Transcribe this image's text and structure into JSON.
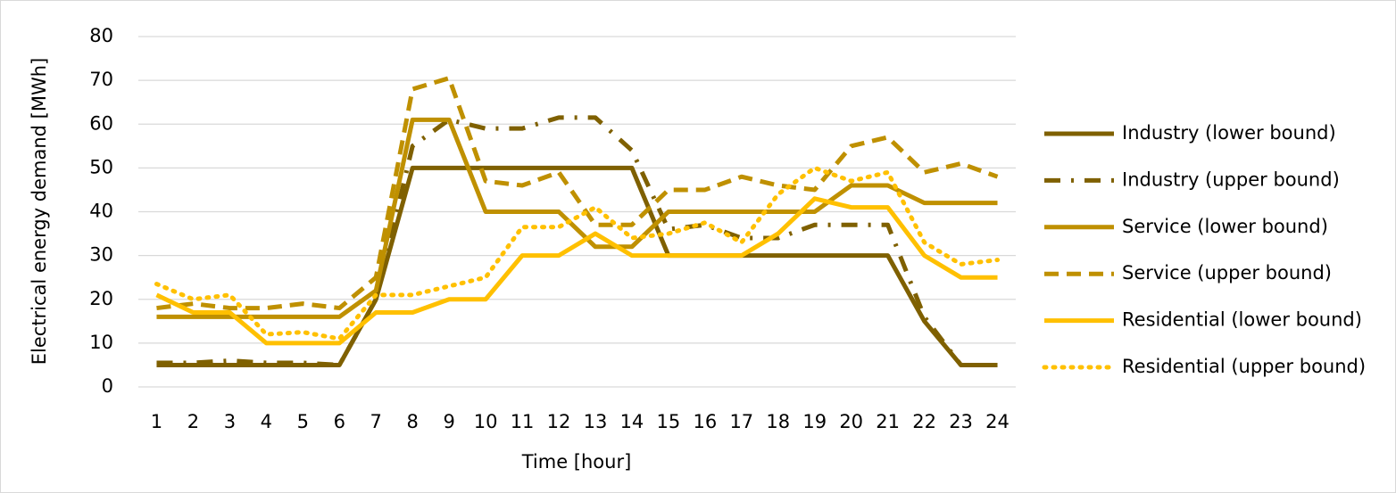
{
  "chart_data": {
    "type": "line",
    "y_label": "Electrical energy demand [MWh]",
    "x_label": "Time [hour]",
    "categories": [
      "1",
      "2",
      "3",
      "4",
      "5",
      "6",
      "7",
      "8",
      "9",
      "10",
      "11",
      "12",
      "13",
      "14",
      "15",
      "16",
      "17",
      "18",
      "19",
      "20",
      "21",
      "22",
      "23",
      "24"
    ],
    "ylim": [
      0,
      80
    ],
    "yticks": [
      0,
      10,
      20,
      30,
      40,
      50,
      60,
      70,
      80
    ],
    "grid": true,
    "legend": "right",
    "series": [
      {
        "name": "Industry (lower bound)",
        "color": "#7f6000",
        "line_style": "solid",
        "values": [
          5,
          5,
          5,
          5,
          5,
          5,
          20,
          50,
          50,
          50,
          50,
          50,
          50,
          50,
          30,
          30,
          30,
          30,
          30,
          30,
          30,
          15,
          5,
          5
        ]
      },
      {
        "name": "Industry (upper bound)",
        "color": "#7f6000",
        "line_style": "dashdot",
        "values": [
          5.5,
          5.5,
          6,
          5.5,
          5.5,
          5,
          20,
          55,
          61,
          59,
          59,
          61.5,
          61.5,
          54,
          36,
          37,
          34,
          34,
          37,
          37,
          37,
          16,
          5,
          5
        ]
      },
      {
        "name": "Service (lower bound)",
        "color": "#bf9000",
        "line_style": "solid",
        "values": [
          16,
          16,
          16,
          16,
          16,
          16,
          22,
          61,
          61,
          40,
          40,
          40,
          32,
          32,
          40,
          40,
          40,
          40,
          40,
          46,
          46,
          42,
          42,
          42
        ]
      },
      {
        "name": "Service (upper bound)",
        "color": "#bf9000",
        "line_style": "dash",
        "values": [
          18,
          19,
          18,
          18,
          19,
          18,
          25,
          68,
          70.5,
          47,
          46,
          49,
          37,
          37,
          45,
          45,
          48,
          46,
          45,
          55,
          57,
          49,
          51,
          48
        ]
      },
      {
        "name": "Residential (lower bound)",
        "color": "#ffc000",
        "line_style": "solid",
        "values": [
          21,
          17,
          17,
          10,
          10,
          10,
          17,
          17,
          20,
          20,
          30,
          30,
          35,
          30,
          30,
          30,
          30,
          35,
          43,
          41,
          41,
          30,
          25,
          25
        ]
      },
      {
        "name": "Residential (upper bound)",
        "color": "#ffc000",
        "line_style": "dot",
        "values": [
          23.5,
          20,
          21,
          12,
          12.5,
          11,
          21,
          21,
          23,
          25,
          36.5,
          36.5,
          41,
          34,
          35,
          37.5,
          33,
          44,
          50,
          47,
          49,
          33,
          28,
          29
        ]
      }
    ]
  }
}
